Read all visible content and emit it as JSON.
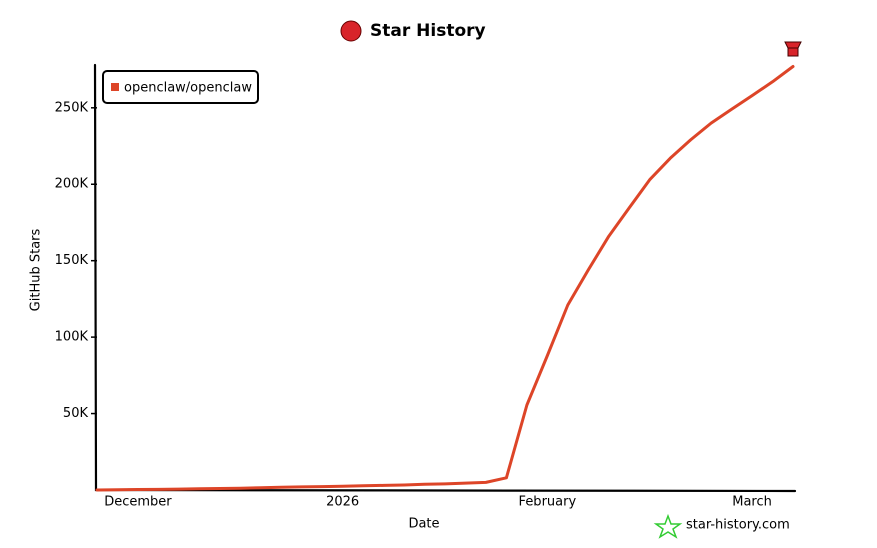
{
  "chart_data": {
    "type": "line",
    "title": "Star History",
    "x_label": "Date",
    "y_label": "GitHub Stars",
    "watermark": "star-history.com",
    "categories": [
      null,
      null,
      "December",
      null,
      null,
      null,
      null,
      null,
      null,
      null,
      null,
      null,
      "2026",
      null,
      null,
      null,
      null,
      null,
      null,
      null,
      null,
      null,
      "February",
      null,
      null,
      null,
      null,
      null,
      null,
      null,
      null,
      null,
      "March",
      null,
      null
    ],
    "series": [
      {
        "name": "openclaw/openclaw",
        "color": "#dd4528",
        "values": [
          0,
          200,
          300,
          400,
          600,
          800,
          1000,
          1200,
          1500,
          1800,
          2000,
          2200,
          2500,
          2800,
          3000,
          3300,
          3700,
          4000,
          4500,
          5000,
          8000,
          55600,
          88000,
          121000,
          144000,
          166000,
          184500,
          203000,
          217000,
          229000,
          240000,
          249000,
          258000,
          267000,
          277000
        ]
      }
    ],
    "ylim": [
      0,
      278000
    ],
    "yticks": [
      {
        "value": 50000,
        "label": "50K"
      },
      {
        "value": 100000,
        "label": "100K"
      },
      {
        "value": 150000,
        "label": "150K"
      },
      {
        "value": 200000,
        "label": "200K"
      },
      {
        "value": 250000,
        "label": "250K"
      }
    ],
    "grid": false,
    "legend": "top-left"
  }
}
